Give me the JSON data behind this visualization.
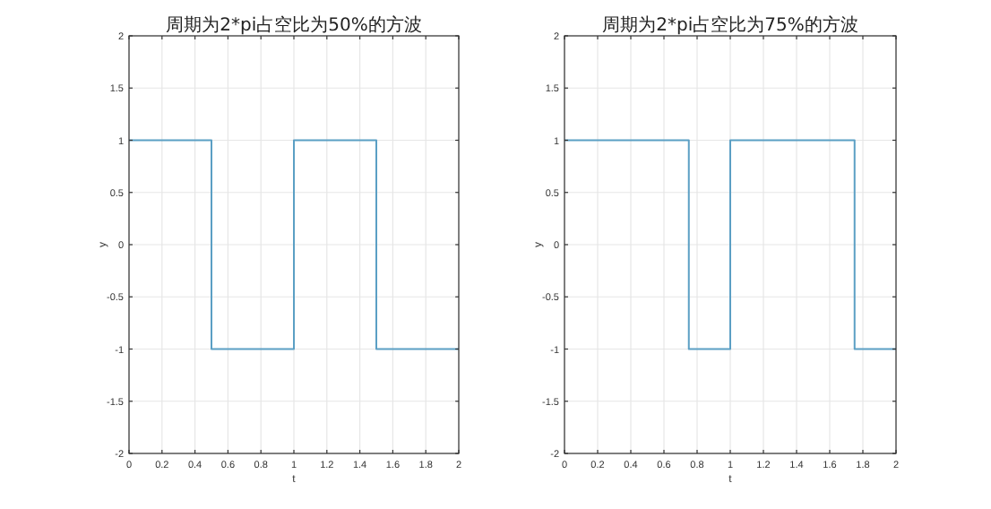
{
  "chart_data": [
    {
      "type": "step",
      "title": "周期为2*pi占空比为50%的方波",
      "xlabel": "t",
      "ylabel": "y",
      "x": [
        0,
        0.5,
        1,
        1.5,
        2
      ],
      "series": [
        {
          "color": "#5b9fc4",
          "values": [
            1,
            -1,
            1,
            -1,
            -1
          ]
        }
      ],
      "xlim": [
        0,
        2
      ],
      "ylim": [
        -2,
        2
      ],
      "xticks": [
        0,
        0.2,
        0.4,
        0.6,
        0.8,
        1,
        1.2,
        1.4,
        1.6,
        1.8,
        2
      ],
      "yticks": [
        -2,
        -1.5,
        -1,
        -0.5,
        0,
        0.5,
        1,
        1.5,
        2
      ],
      "grid": true
    },
    {
      "type": "step",
      "title": "周期为2*pi占空比为75%的方波",
      "xlabel": "t",
      "ylabel": "y",
      "x": [
        0,
        0.75,
        1,
        1.75,
        2
      ],
      "series": [
        {
          "color": "#5b9fc4",
          "values": [
            1,
            -1,
            1,
            -1,
            -1
          ]
        }
      ],
      "xlim": [
        0,
        2
      ],
      "ylim": [
        -2,
        2
      ],
      "xticks": [
        0,
        0.2,
        0.4,
        0.6,
        0.8,
        1,
        1.2,
        1.4,
        1.6,
        1.8,
        2
      ],
      "yticks": [
        -2,
        -1.5,
        -1,
        -0.5,
        0,
        0.5,
        1,
        1.5,
        2
      ],
      "grid": true
    }
  ]
}
